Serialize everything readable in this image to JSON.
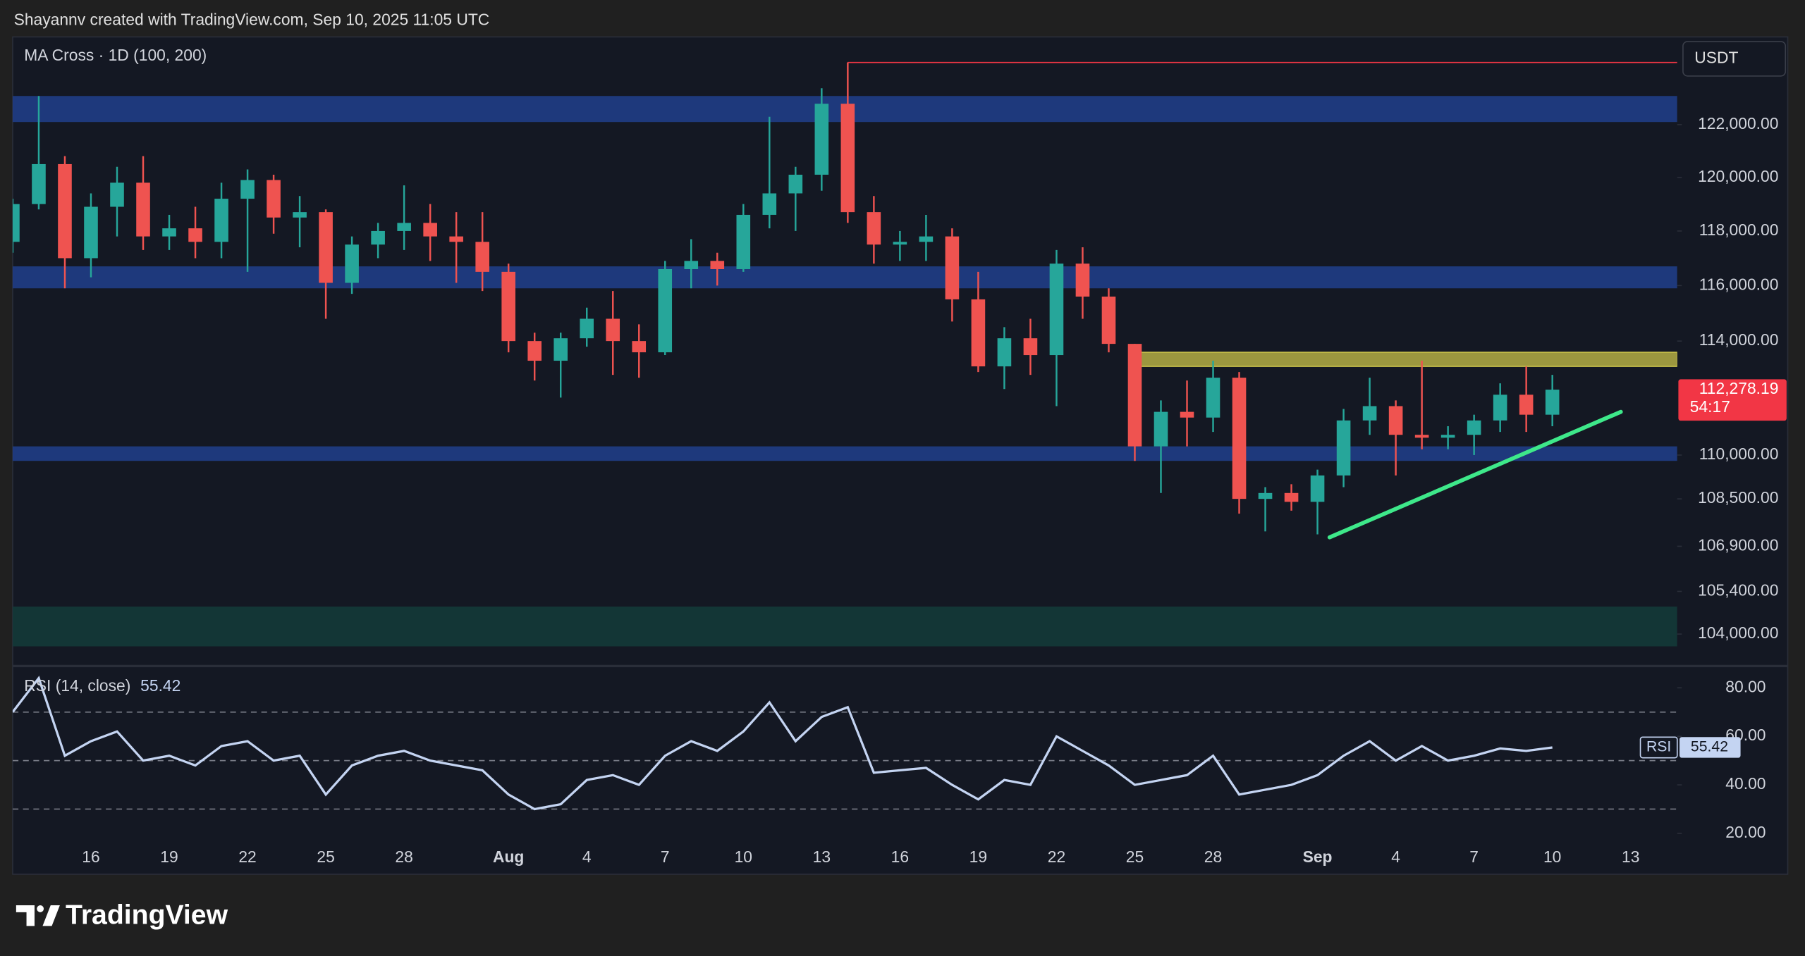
{
  "header": "Shayannv created with TradingView.com, Sep 10, 2025 11:05 UTC",
  "currency": "USDT",
  "footer_brand": "TradingView",
  "chart_data": [
    {
      "type": "candlestick",
      "title": "MA Cross · 1D (100, 200)",
      "categories": [
        null,
        null,
        null,
        "16",
        null,
        null,
        "19",
        null,
        null,
        "22",
        null,
        null,
        "25",
        null,
        null,
        "28",
        null,
        null,
        null,
        "Aug",
        null,
        null,
        "4",
        null,
        null,
        "7",
        null,
        null,
        "10",
        null,
        null,
        "13",
        null,
        null,
        "16",
        null,
        null,
        "19",
        null,
        null,
        "22",
        null,
        null,
        "25",
        null,
        null,
        "28",
        null,
        null,
        null,
        "Sep",
        null,
        null,
        "4",
        null,
        null,
        "7",
        null,
        null,
        "10",
        null,
        null,
        "13",
        null
      ],
      "open": [
        117600,
        119000,
        120500,
        117000,
        118900,
        119800,
        117800,
        118100,
        117600,
        119200,
        119900,
        118500,
        118700,
        116100,
        117500,
        118000,
        118300,
        117800,
        117600,
        116500,
        114000,
        113300,
        114100,
        114800,
        114000,
        113600,
        116600,
        116900,
        116600,
        118600,
        119400,
        120100,
        122800,
        118700,
        117500,
        117600,
        117800,
        115500,
        113100,
        114100,
        113500,
        116800,
        115600,
        113900,
        110300,
        111500,
        111300,
        112700,
        108500,
        108700,
        108400,
        109300,
        111200,
        111700,
        110700,
        110600,
        110700,
        111200,
        112100,
        111400,
        null,
        null,
        null,
        null
      ],
      "high": [
        119200,
        123100,
        120800,
        119400,
        120400,
        120800,
        118600,
        118900,
        119800,
        120300,
        120100,
        119300,
        118800,
        117800,
        118300,
        119700,
        119000,
        118700,
        118700,
        116800,
        114300,
        114300,
        115200,
        115800,
        114600,
        116900,
        117700,
        117200,
        119000,
        122300,
        120400,
        123400,
        124400,
        119300,
        118000,
        118600,
        118100,
        116500,
        114500,
        114800,
        117300,
        117400,
        115900,
        113900,
        111900,
        112600,
        113300,
        112900,
        108900,
        109000,
        109500,
        111600,
        112700,
        111900,
        113300,
        111000,
        111400,
        112500,
        113100,
        112800,
        null,
        null,
        null,
        null
      ],
      "low": [
        117200,
        118800,
        115900,
        116300,
        117800,
        117300,
        117300,
        117000,
        117000,
        116500,
        117900,
        117400,
        114800,
        115700,
        117000,
        117300,
        116900,
        116100,
        115800,
        113600,
        112600,
        112000,
        113800,
        112800,
        112700,
        113500,
        115900,
        116000,
        116500,
        118100,
        118000,
        119500,
        118300,
        116800,
        116900,
        116900,
        114700,
        112900,
        112300,
        112800,
        111700,
        114800,
        113600,
        109800,
        108700,
        110300,
        110800,
        108000,
        107400,
        108100,
        107300,
        108900,
        110700,
        109300,
        110200,
        110200,
        110000,
        110800,
        110800,
        111000,
        null,
        null,
        null,
        null
      ],
      "close": [
        119000,
        120500,
        117000,
        118900,
        119800,
        117800,
        118100,
        117600,
        119200,
        119900,
        118500,
        118700,
        116100,
        117500,
        118000,
        118300,
        117800,
        117600,
        116500,
        114000,
        113300,
        114100,
        114800,
        114000,
        113600,
        116600,
        116900,
        116600,
        118600,
        119400,
        120100,
        122800,
        118700,
        117500,
        117600,
        117800,
        115500,
        113100,
        114100,
        113500,
        116800,
        115600,
        113900,
        110300,
        111500,
        111300,
        112700,
        108500,
        108700,
        108400,
        109300,
        111200,
        111700,
        110700,
        110600,
        110700,
        111200,
        112100,
        111400,
        112278.19,
        null,
        null,
        null,
        null
      ],
      "up_color": "#26a69a",
      "down_color": "#ef5350",
      "log_scale": true,
      "ylim": [
        103000,
        125400
      ],
      "yticks": [
        {
          "value": 122000,
          "label": "122,000.00"
        },
        {
          "value": 120000,
          "label": "120,000.00"
        },
        {
          "value": 118000,
          "label": "118,000.00"
        },
        {
          "value": 116000,
          "label": "116,000.00"
        },
        {
          "value": 114000,
          "label": "114,000.00"
        },
        {
          "value": 110000,
          "label": "110,000.00"
        },
        {
          "value": 108500,
          "label": "108,500.00"
        },
        {
          "value": 106900,
          "label": "106,900.00"
        },
        {
          "value": 105400,
          "label": "105,400.00"
        },
        {
          "value": 104000,
          "label": "104,000.00"
        }
      ],
      "zones": [
        {
          "low": 122100,
          "high": 123100,
          "color": "#1f3d86"
        },
        {
          "low": 115900,
          "high": 116700,
          "color": "#1f3d86"
        },
        {
          "low": 109800,
          "high": 110300,
          "color": "#1f3d86"
        },
        {
          "low": 103600,
          "high": 104900,
          "color": "#133a38"
        }
      ],
      "resistance_zone": {
        "low": 113100,
        "high": 113600,
        "color": "#c9c24a"
      },
      "trendline": {
        "from": 107200,
        "to": 111500,
        "color": "#3ee88a"
      },
      "high_line_color": "#f23645",
      "last_price_label": "112,278.19",
      "countdown": "54:17"
    },
    {
      "type": "line",
      "title": "RSI (14, close)",
      "name": "RSI",
      "color": "#c4d4f2",
      "values": [
        70,
        84,
        52,
        58,
        62,
        50,
        52,
        48,
        56,
        58,
        50,
        52,
        36,
        48,
        52,
        54,
        50,
        48,
        46,
        36,
        30,
        32,
        42,
        44,
        40,
        52,
        58,
        54,
        62,
        74,
        58,
        68,
        72,
        45,
        46,
        47,
        40,
        34,
        42,
        40,
        60,
        54,
        48,
        40,
        42,
        44,
        52,
        36,
        38,
        40,
        44,
        52,
        58,
        50,
        56,
        50,
        52,
        55,
        54,
        55.42,
        null,
        null,
        null,
        null
      ],
      "ylim": [
        15,
        88.5
      ],
      "yticks": [
        {
          "value": 20,
          "label": "20.00"
        },
        {
          "value": 40,
          "label": "40.00"
        },
        {
          "value": 60,
          "label": "60.00"
        },
        {
          "value": 80,
          "label": "80.00"
        }
      ],
      "bands": [
        30,
        50,
        70
      ]
    }
  ]
}
